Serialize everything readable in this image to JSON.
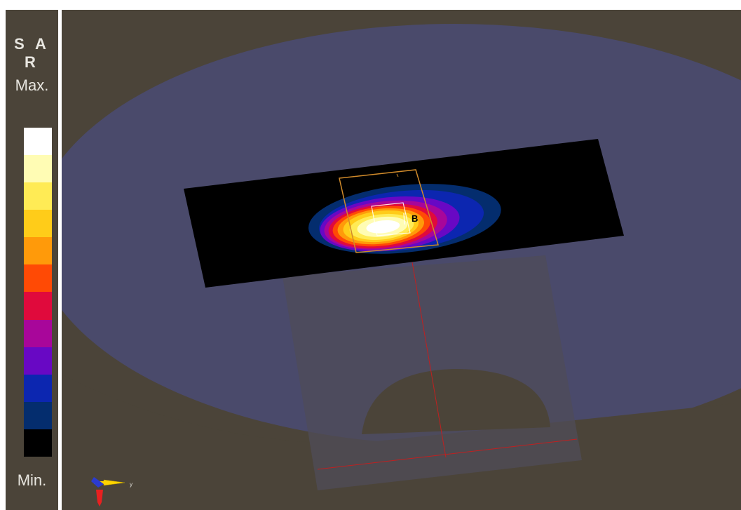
{
  "legend": {
    "title": "S A R",
    "max_label": "Max.",
    "min_label": "Min.",
    "colors": [
      "#ffffff",
      "#fffcb4",
      "#ffeb55",
      "#ffcc19",
      "#ff9a0a",
      "#ff4a05",
      "#e00a3c",
      "#a8069a",
      "#6808c4",
      "#0c26b0",
      "#042d6e",
      "#000000"
    ]
  },
  "viewport": {
    "background": "#4b4439",
    "phantom_color": "#4a4a6b",
    "scan_plane_color": "#000000",
    "probe_marker": "B",
    "triad": {
      "y_label": "y"
    }
  }
}
